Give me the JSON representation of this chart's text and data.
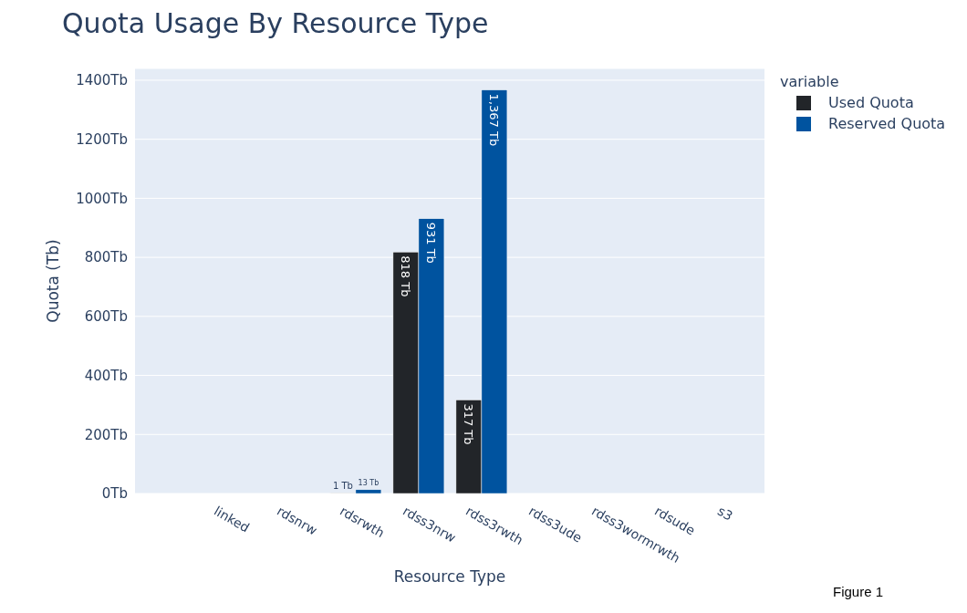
{
  "chart_data": {
    "type": "bar",
    "title": "Quota Usage By Resource Type",
    "xlabel": "Resource Type",
    "ylabel": "Quota (Tb)",
    "legend_title": "variable",
    "categories": [
      null,
      "linked",
      "rdsnrw",
      "rdsrwth",
      "rdss3nrw",
      "rdss3rwth",
      "rdss3ude",
      "rdss3wormrwth",
      "rdsude",
      "s3"
    ],
    "series": [
      {
        "name": "Used Quota",
        "color": "#222529",
        "values": [
          null,
          null,
          null,
          1,
          818,
          317,
          null,
          null,
          null,
          null
        ],
        "value_labels": [
          null,
          null,
          null,
          "1 Tb",
          "818 Tb",
          "317 Tb",
          null,
          null,
          null,
          null
        ]
      },
      {
        "name": "Reserved Quota",
        "color": "#00539f",
        "values": [
          null,
          null,
          null,
          13,
          931,
          1367,
          null,
          null,
          null,
          null
        ],
        "value_labels": [
          null,
          null,
          null,
          "13 Tb",
          "931 Tb",
          "1,367 Tb",
          null,
          null,
          null,
          null
        ]
      }
    ],
    "ylim": [
      0,
      1440
    ],
    "yticks": [
      {
        "value": 0,
        "label": "0Tb"
      },
      {
        "value": 200,
        "label": "200Tb"
      },
      {
        "value": 400,
        "label": "400Tb"
      },
      {
        "value": 600,
        "label": "600Tb"
      },
      {
        "value": 800,
        "label": "800Tb"
      },
      {
        "value": 1000,
        "label": "1000Tb"
      },
      {
        "value": 1200,
        "label": "1200Tb"
      },
      {
        "value": 1400,
        "label": "1400Tb"
      }
    ],
    "grid": "y",
    "legend": "top right",
    "annotations": [
      "Figure 1"
    ]
  }
}
